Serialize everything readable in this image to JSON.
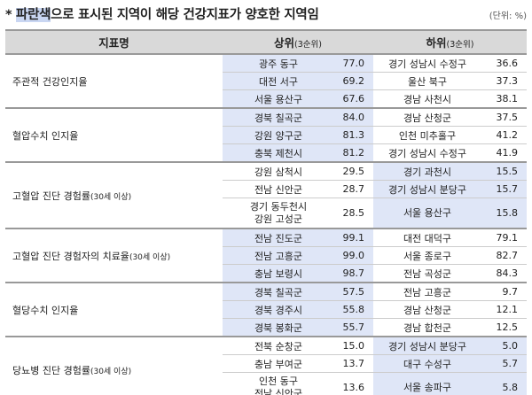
{
  "title": {
    "highlight": "파란색",
    "rest": "으로 표시된 지역이 해당 건강지표가 양호한 지역임",
    "prefix": "* "
  },
  "unit": "(단위: %)",
  "header": {
    "indicator": "지표명",
    "top": "상위",
    "top_sub": "(3순위)",
    "bottom": "하위",
    "bottom_sub": "(3순위)"
  },
  "colors": {
    "good_highlight": "#dfe6f7",
    "header_bg": "#d9d9d9"
  },
  "groups": [
    {
      "label": "주관적 건강인지율",
      "label_sub": "",
      "good": "top",
      "rows": [
        {
          "top_region": "광주 동구",
          "top_value": "77.0",
          "bottom_region": "경기 성남시 수정구",
          "bottom_value": "36.6"
        },
        {
          "top_region": "대전 서구",
          "top_value": "69.2",
          "bottom_region": "울산 북구",
          "bottom_value": "37.3"
        },
        {
          "top_region": "서울 용산구",
          "top_value": "67.6",
          "bottom_region": "경남 사천시",
          "bottom_value": "38.1"
        }
      ]
    },
    {
      "label": "혈압수치 인지율",
      "label_sub": "",
      "good": "top",
      "rows": [
        {
          "top_region": "경북 칠곡군",
          "top_value": "84.0",
          "bottom_region": "경남 산청군",
          "bottom_value": "37.5"
        },
        {
          "top_region": "강원 양구군",
          "top_value": "81.3",
          "bottom_region": "인천 미추홀구",
          "bottom_value": "41.2"
        },
        {
          "top_region": "충북 제천시",
          "top_value": "81.2",
          "bottom_region": "경기 성남시 수정구",
          "bottom_value": "41.9"
        }
      ]
    },
    {
      "label": "고혈압 진단 경험률",
      "label_sub": "(30세 이상)",
      "good": "bottom",
      "rows": [
        {
          "top_region": "강원 삼척시",
          "top_value": "29.5",
          "bottom_region": "경기 과천시",
          "bottom_value": "15.5"
        },
        {
          "top_region": "전남 신안군",
          "top_value": "28.7",
          "bottom_region": "경기 성남시 분당구",
          "bottom_value": "15.7"
        },
        {
          "top_region": "경기 동두천시\n강원 고성군",
          "top_value": "28.5",
          "bottom_region": "서울 용산구",
          "bottom_value": "15.8"
        }
      ]
    },
    {
      "label": "고혈압 진단 경험자의 치료율",
      "label_sub": "(30세 이상)",
      "good": "top",
      "rows": [
        {
          "top_region": "전남 진도군",
          "top_value": "99.1",
          "bottom_region": "대전 대덕구",
          "bottom_value": "79.1"
        },
        {
          "top_region": "전남 고흥군",
          "top_value": "99.0",
          "bottom_region": "서울 종로구",
          "bottom_value": "82.7"
        },
        {
          "top_region": "충남 보령시",
          "top_value": "98.7",
          "bottom_region": "전남 곡성군",
          "bottom_value": "84.3"
        }
      ]
    },
    {
      "label": "혈당수치 인지율",
      "label_sub": "",
      "good": "top",
      "rows": [
        {
          "top_region": "경북 칠곡군",
          "top_value": "57.5",
          "bottom_region": "전남 고흥군",
          "bottom_value": "9.7"
        },
        {
          "top_region": "경북 경주시",
          "top_value": "55.8",
          "bottom_region": "경남 산청군",
          "bottom_value": "12.1"
        },
        {
          "top_region": "경북 봉화군",
          "top_value": "55.7",
          "bottom_region": "경남 합천군",
          "bottom_value": "12.5"
        }
      ]
    },
    {
      "label": "당뇨병 진단 경험률",
      "label_sub": "(30세 이상)",
      "good": "bottom",
      "rows": [
        {
          "top_region": "전북 순창군",
          "top_value": "15.0",
          "bottom_region": "경기 성남시 분당구",
          "bottom_value": "5.0"
        },
        {
          "top_region": "충남 부여군",
          "top_value": "13.7",
          "bottom_region": "대구 수성구",
          "bottom_value": "5.7"
        },
        {
          "top_region": "인천 동구\n전남 신안군",
          "top_value": "13.6",
          "bottom_region": "서울 송파구",
          "bottom_value": "5.8"
        }
      ]
    }
  ]
}
